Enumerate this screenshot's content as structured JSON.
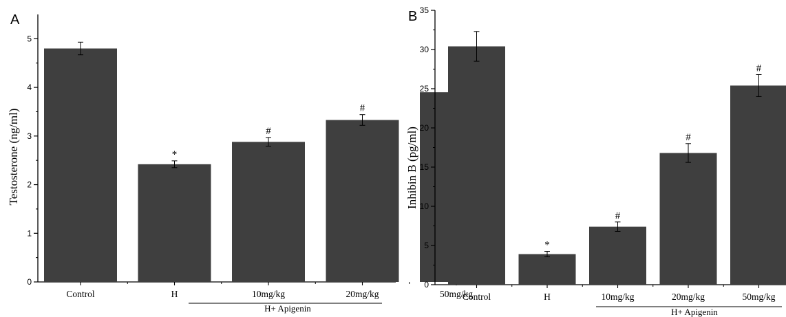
{
  "chart_data": [
    {
      "type": "bar",
      "panel_label": "A",
      "ylabel": "Testosterone (ng/ml)",
      "categories": [
        "Control",
        "H",
        "10mg/kg",
        "20mg/kg",
        "50mg/kg"
      ],
      "values": [
        4.8,
        2.42,
        2.88,
        3.33,
        3.9
      ],
      "errors": [
        0.13,
        0.07,
        0.09,
        0.11,
        0.12
      ],
      "markers": [
        "",
        "*",
        "#",
        "#",
        "#"
      ],
      "ylim": [
        0,
        5.5
      ],
      "yticks": [
        "0",
        "1",
        "2",
        "3",
        "4",
        "5"
      ],
      "group_label": "H+ Apigenin",
      "bar_color": "#3f3f3f"
    },
    {
      "type": "bar",
      "panel_label": "B",
      "ylabel": "Inhibin B (pg/ml)",
      "categories": [
        "Control",
        "H",
        "10mg/kg",
        "20mg/kg",
        "50mg/kg"
      ],
      "values": [
        30.4,
        3.9,
        7.4,
        16.8,
        25.4
      ],
      "errors": [
        1.9,
        0.35,
        0.6,
        1.2,
        1.4
      ],
      "markers": [
        "",
        "*",
        "#",
        "#",
        "#"
      ],
      "ylim": [
        0,
        35
      ],
      "yticks": [
        "0",
        "5",
        "10",
        "15",
        "20",
        "25",
        "30",
        "35"
      ],
      "group_label": "H+ Apigenin",
      "bar_color": "#3f3f3f"
    }
  ]
}
